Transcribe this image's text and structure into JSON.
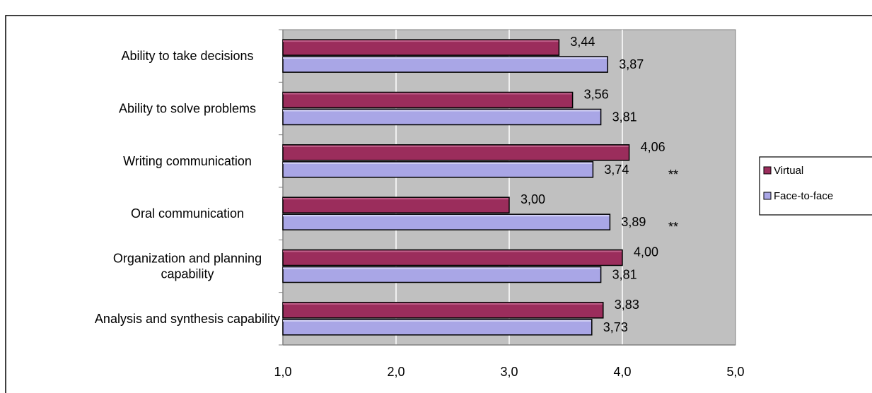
{
  "chart_data": {
    "type": "bar",
    "orientation": "horizontal",
    "title": "",
    "xlabel": "",
    "ylabel": "",
    "xlim": [
      1.0,
      5.0
    ],
    "grid": true,
    "legend_position": "right",
    "tick_labels": [
      "1,0",
      "2,0",
      "3,0",
      "4,0",
      "5,0"
    ],
    "categories": [
      [
        "Ability to take decisions"
      ],
      [
        "Ability to solve problems"
      ],
      [
        "Writing communication"
      ],
      [
        "Oral communication"
      ],
      [
        "Organization and planning",
        "capability"
      ],
      [
        "Analysis and synthesis capability"
      ]
    ],
    "series": [
      {
        "name": "Virtual",
        "color": "#9b2d5c",
        "values": [
          3.44,
          3.56,
          4.06,
          3.0,
          4.0,
          3.83
        ],
        "labels": [
          "3,44",
          "3,56",
          "4,06",
          "3,00",
          "4,00",
          "3,83"
        ]
      },
      {
        "name": "Face-to-face",
        "color": "#a9a6e6",
        "values": [
          3.87,
          3.81,
          3.74,
          3.89,
          3.81,
          3.73
        ],
        "labels": [
          "3,87",
          "3,81",
          "3,74",
          "3,89",
          "3,81",
          "3,73"
        ]
      }
    ],
    "annotations": [
      {
        "category_index": 2,
        "text": "**"
      },
      {
        "category_index": 3,
        "text": "**"
      }
    ]
  }
}
